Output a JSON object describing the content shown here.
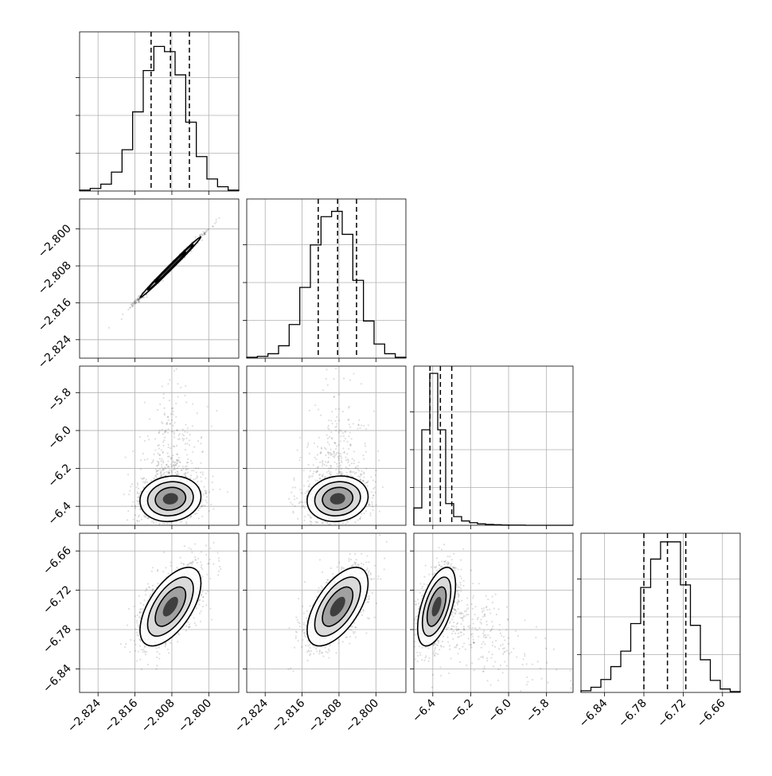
{
  "chart_data": {
    "type": "corner",
    "dims": 4,
    "grid": true,
    "axes": [
      {
        "range": [
          -2.828,
          -2.7935
        ],
        "ticks": [
          -2.824,
          -2.816,
          -2.808,
          -2.8
        ],
        "labels": [
          "−2.824",
          "−2.816",
          "−2.808",
          "−2.800"
        ]
      },
      {
        "range": [
          -2.828,
          -2.7935
        ],
        "ticks": [
          -2.824,
          -2.816,
          -2.808,
          -2.8
        ],
        "labels": [
          "−2.824",
          "−2.816",
          "−2.808",
          "−2.800"
        ]
      },
      {
        "range": [
          -6.5,
          -5.66
        ],
        "ticks": [
          -6.4,
          -6.2,
          -6.0,
          -5.8
        ],
        "labels": [
          "−6.4",
          "−6.2",
          "−6.0",
          "−5.8"
        ]
      },
      {
        "range": [
          -6.876,
          -6.633
        ],
        "ticks": [
          -6.84,
          -6.78,
          -6.72,
          -6.66
        ],
        "labels": [
          "−6.84",
          "−6.78",
          "−6.72",
          "−6.66"
        ]
      }
    ],
    "quantiles": [
      [
        -2.8125,
        -2.8083,
        -2.8042
      ],
      [
        -2.8125,
        -2.8083,
        -2.8042
      ],
      [
        -6.415,
        -6.36,
        -6.3
      ],
      [
        -6.78,
        -6.744,
        -6.716
      ]
    ],
    "histograms": [
      {
        "counts": [
          1,
          3,
          8,
          22,
          48,
          92,
          140,
          168,
          162,
          135,
          80,
          40,
          14,
          5,
          1
        ],
        "ymax": 185
      },
      {
        "counts": [
          1,
          2,
          5,
          14,
          38,
          80,
          128,
          160,
          166,
          140,
          88,
          42,
          16,
          5,
          1
        ],
        "ymax": 180
      },
      {
        "counts": [
          120,
          660,
          1050,
          660,
          150,
          60,
          30,
          18,
          10,
          6,
          4,
          2,
          1,
          1,
          0,
          0,
          0,
          0,
          0,
          0
        ],
        "ymax": 1100
      },
      {
        "counts": [
          2,
          6,
          15,
          30,
          48,
          80,
          122,
          155,
          175,
          175,
          125,
          78,
          38,
          14,
          4,
          1
        ],
        "ymax": 185
      }
    ],
    "pairs": [
      {
        "row": 1,
        "col": 0,
        "mean": [
          -2.8083,
          -2.8083
        ],
        "sd": [
          0.0033,
          0.0033
        ],
        "rho": 0.995
      },
      {
        "row": 2,
        "col": 0,
        "mean": [
          -2.8083,
          -6.36
        ],
        "sd": [
          0.0033,
          0.06
        ],
        "rho": 0.1
      },
      {
        "row": 2,
        "col": 1,
        "mean": [
          -2.8083,
          -6.36
        ],
        "sd": [
          0.0033,
          0.06
        ],
        "rho": 0.1
      },
      {
        "row": 3,
        "col": 0,
        "mean": [
          -2.8083,
          -6.745
        ],
        "sd": [
          0.0033,
          0.03
        ],
        "rho": 0.6
      },
      {
        "row": 3,
        "col": 1,
        "mean": [
          -2.8083,
          -6.745
        ],
        "sd": [
          0.0033,
          0.03
        ],
        "rho": 0.6
      },
      {
        "row": 3,
        "col": 2,
        "mean": [
          -6.38,
          -6.745
        ],
        "sd": [
          0.05,
          0.03
        ],
        "rho": 0.55
      }
    ]
  }
}
